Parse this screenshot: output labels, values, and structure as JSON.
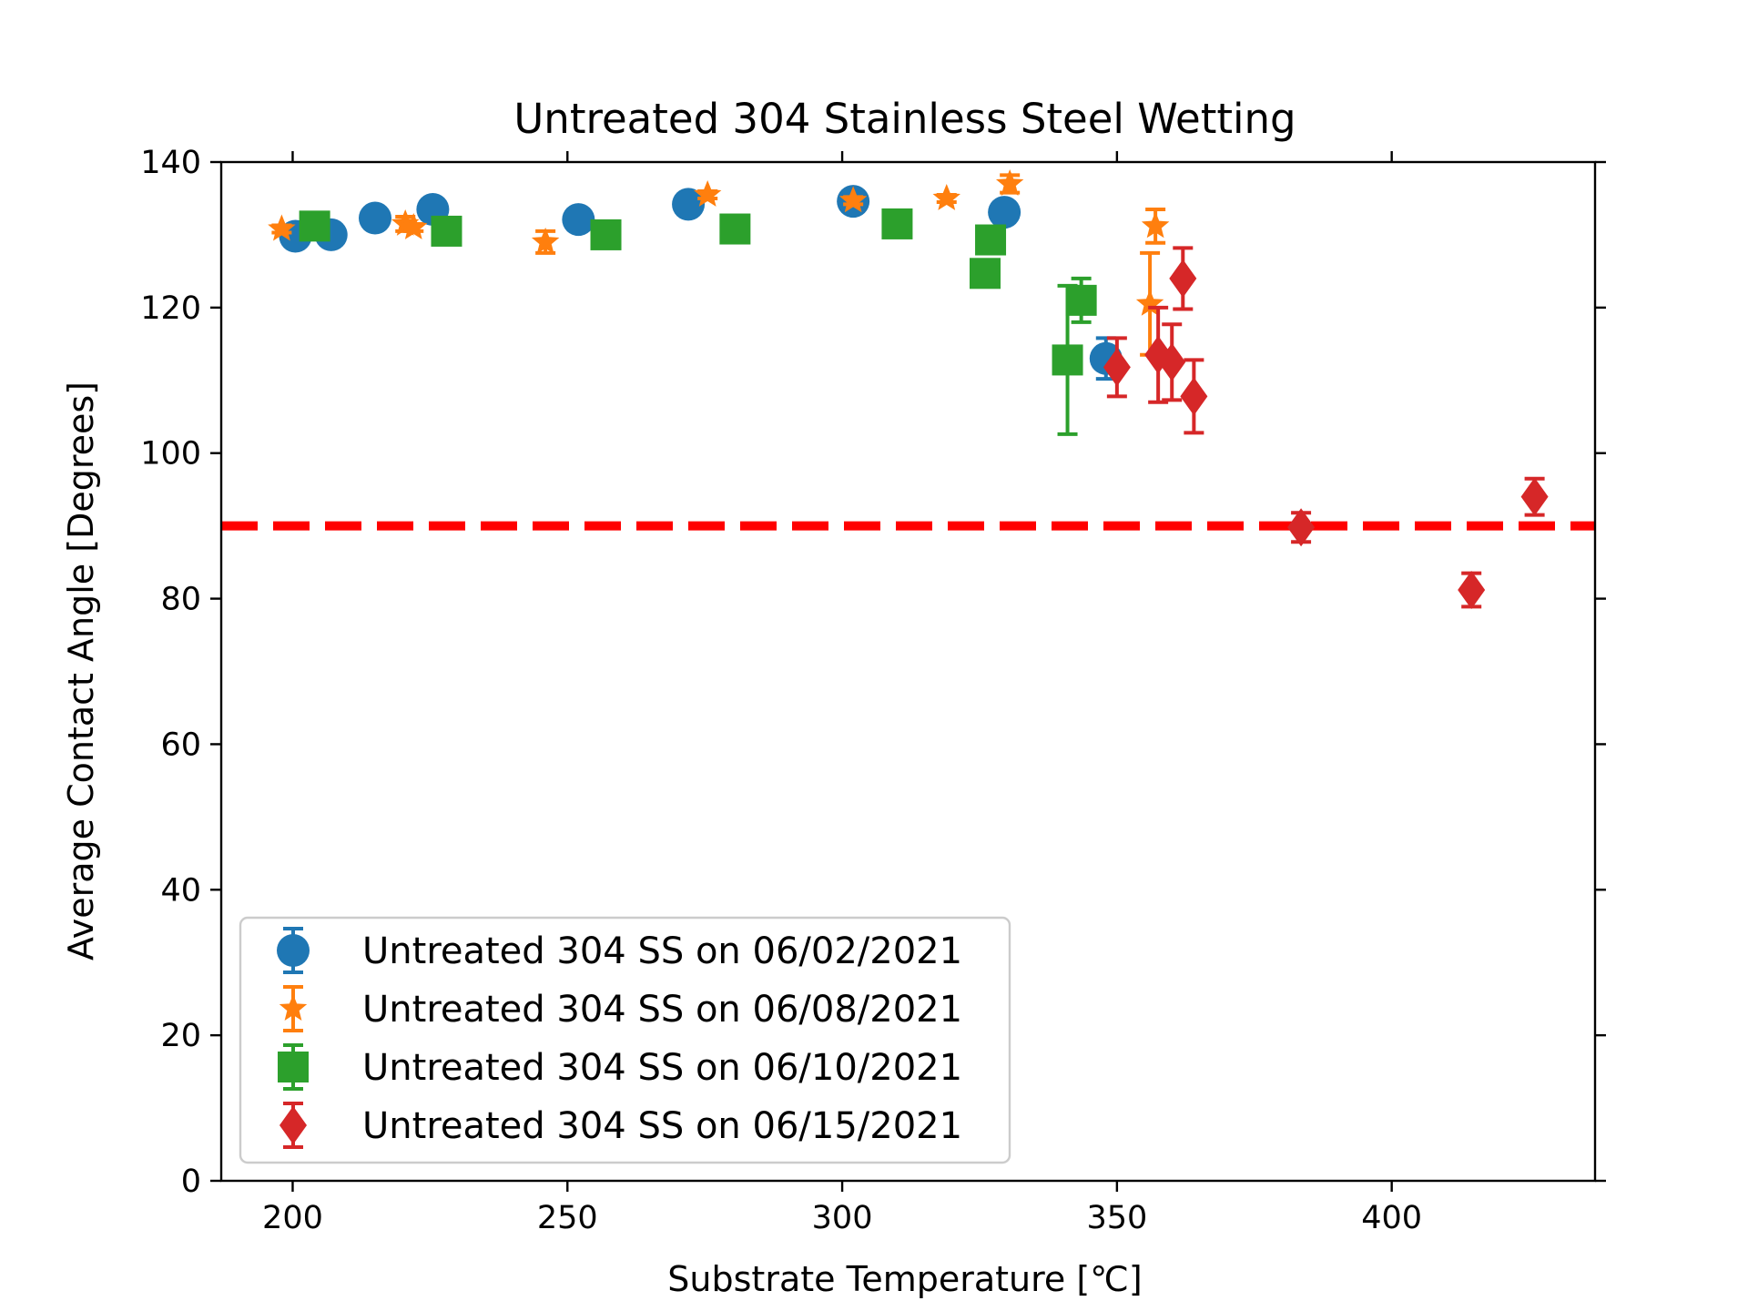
{
  "chart_data": {
    "type": "scatter",
    "title": "Untreated 304 Stainless Steel Wetting",
    "xlabel": "Substrate Temperature [℃]",
    "ylabel": "Average Contact Angle [Degrees]",
    "xlim": [
      187,
      437
    ],
    "ylim": [
      0,
      140
    ],
    "xticks": [
      200,
      250,
      300,
      350,
      400
    ],
    "yticks": [
      0,
      20,
      40,
      60,
      80,
      100,
      120,
      140
    ],
    "grid": false,
    "legend_position": "lower-left",
    "reference_line": {
      "y": 90,
      "color": "#ff0000",
      "style": "dashed"
    },
    "series": [
      {
        "name": "Untreated 304 SS on 06/02/2021",
        "color": "#1f77b4",
        "marker": "circle",
        "points": [
          {
            "x": 200.5,
            "y": 129.8,
            "err": 0.4
          },
          {
            "x": 207,
            "y": 130.0,
            "err": 0.4
          },
          {
            "x": 215,
            "y": 132.3,
            "err": 0.4
          },
          {
            "x": 225.5,
            "y": 133.5,
            "err": 0.5
          },
          {
            "x": 252,
            "y": 132.1,
            "err": 0.4
          },
          {
            "x": 272,
            "y": 134.2,
            "err": 0.4
          },
          {
            "x": 302,
            "y": 134.6,
            "err": 0.6
          },
          {
            "x": 329.5,
            "y": 133.1,
            "err": 0.5
          },
          {
            "x": 348,
            "y": 113.0,
            "err": 2.8
          }
        ]
      },
      {
        "name": "Untreated 304 SS on 06/08/2021",
        "color": "#ff7f0e",
        "marker": "star",
        "points": [
          {
            "x": 198,
            "y": 130.8,
            "err": 0.5
          },
          {
            "x": 220.5,
            "y": 131.5,
            "err": 1.0
          },
          {
            "x": 222,
            "y": 131.0,
            "err": 0.5
          },
          {
            "x": 246,
            "y": 129.0,
            "err": 1.5
          },
          {
            "x": 275.5,
            "y": 135.5,
            "err": 0.5
          },
          {
            "x": 302,
            "y": 134.7,
            "err": 0.5
          },
          {
            "x": 319,
            "y": 135.0,
            "err": 0.5
          },
          {
            "x": 330.5,
            "y": 137.0,
            "err": 1.2
          },
          {
            "x": 356,
            "y": 120.5,
            "err": 7.0
          },
          {
            "x": 357,
            "y": 131.2,
            "err": 2.3
          }
        ]
      },
      {
        "name": "Untreated 304 SS on 06/10/2021",
        "color": "#2ca02c",
        "marker": "square",
        "points": [
          {
            "x": 204,
            "y": 131.2,
            "err": 0.5
          },
          {
            "x": 228,
            "y": 130.5,
            "err": 0.5
          },
          {
            "x": 257,
            "y": 130.0,
            "err": 0.5
          },
          {
            "x": 280.5,
            "y": 130.8,
            "err": 0.5
          },
          {
            "x": 310,
            "y": 131.5,
            "err": 0.5
          },
          {
            "x": 326,
            "y": 124.7,
            "err": 0.5
          },
          {
            "x": 327,
            "y": 129.3,
            "err": 0.5
          },
          {
            "x": 341,
            "y": 112.8,
            "err": 10.2
          },
          {
            "x": 343.5,
            "y": 121.0,
            "err": 3.0
          }
        ]
      },
      {
        "name": "Untreated 304 SS on 06/15/2021",
        "color": "#d62728",
        "marker": "diamond",
        "points": [
          {
            "x": 350,
            "y": 111.8,
            "err": 4.0
          },
          {
            "x": 357.5,
            "y": 113.5,
            "err": 6.5
          },
          {
            "x": 360,
            "y": 112.5,
            "err": 5.2
          },
          {
            "x": 362,
            "y": 124.0,
            "err": 4.2
          },
          {
            "x": 364,
            "y": 107.8,
            "err": 5.0
          },
          {
            "x": 383.5,
            "y": 89.8,
            "err": 2.0
          },
          {
            "x": 414.5,
            "y": 81.2,
            "err": 2.3
          },
          {
            "x": 426,
            "y": 94.0,
            "err": 2.5
          }
        ]
      }
    ]
  }
}
